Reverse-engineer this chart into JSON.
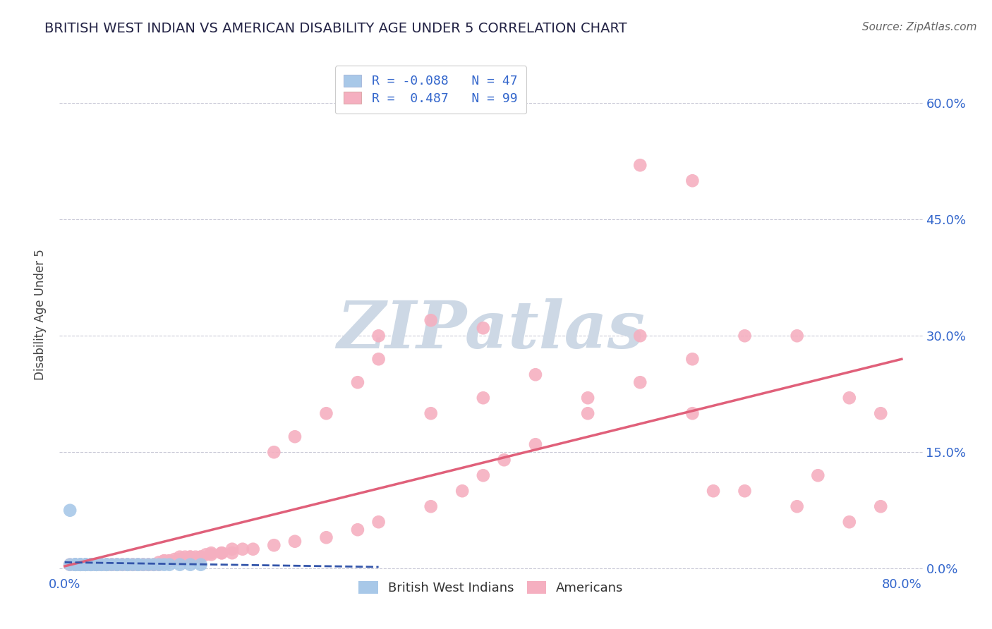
{
  "title": "BRITISH WEST INDIAN VS AMERICAN DISABILITY AGE UNDER 5 CORRELATION CHART",
  "source_text": "Source: ZipAtlas.com",
  "ylabel": "Disability Age Under 5",
  "x_ticks": [
    0.0,
    0.1,
    0.2,
    0.3,
    0.4,
    0.5,
    0.6,
    0.7,
    0.8
  ],
  "x_tick_labels": [
    "0.0%",
    "",
    "",
    "",
    "",
    "",
    "",
    "",
    "80.0%"
  ],
  "y_ticks": [
    0.0,
    0.15,
    0.3,
    0.45,
    0.6
  ],
  "y_tick_labels_right": [
    "0.0%",
    "15.0%",
    "30.0%",
    "45.0%",
    "60.0%"
  ],
  "xlim": [
    -0.005,
    0.82
  ],
  "ylim": [
    -0.005,
    0.66
  ],
  "background_color": "#ffffff",
  "grid_color": "#bbbbcc",
  "watermark_text": "ZIPatlas",
  "watermark_color": "#cdd8e5",
  "legend_r1": "-0.088",
  "legend_n1": "47",
  "legend_r2": "0.487",
  "legend_n2": "99",
  "blue_color": "#a8c8e8",
  "pink_color": "#f5afc0",
  "blue_line_color": "#3355aa",
  "pink_line_color": "#e0607a",
  "axis_label_color": "#3366cc",
  "title_color": "#222244",
  "bwi_x": [
    0.005,
    0.01,
    0.01,
    0.01,
    0.01,
    0.015,
    0.015,
    0.015,
    0.015,
    0.02,
    0.02,
    0.02,
    0.02,
    0.02,
    0.025,
    0.025,
    0.025,
    0.03,
    0.03,
    0.03,
    0.03,
    0.035,
    0.035,
    0.04,
    0.04,
    0.04,
    0.045,
    0.05,
    0.05,
    0.055,
    0.06,
    0.06,
    0.065,
    0.07,
    0.07,
    0.075,
    0.08,
    0.085,
    0.09,
    0.095,
    0.1,
    0.11,
    0.12,
    0.13,
    0.005,
    0.01,
    0.015
  ],
  "bwi_y": [
    0.075,
    0.005,
    0.005,
    0.005,
    0.005,
    0.005,
    0.005,
    0.005,
    0.005,
    0.005,
    0.005,
    0.005,
    0.005,
    0.005,
    0.005,
    0.005,
    0.005,
    0.005,
    0.005,
    0.005,
    0.005,
    0.005,
    0.005,
    0.005,
    0.005,
    0.005,
    0.005,
    0.005,
    0.005,
    0.005,
    0.005,
    0.005,
    0.005,
    0.005,
    0.005,
    0.005,
    0.005,
    0.005,
    0.005,
    0.005,
    0.005,
    0.005,
    0.005,
    0.005,
    0.005,
    0.005,
    0.005
  ],
  "amer_x": [
    0.005,
    0.01,
    0.01,
    0.015,
    0.015,
    0.02,
    0.02,
    0.02,
    0.025,
    0.025,
    0.03,
    0.03,
    0.03,
    0.035,
    0.035,
    0.04,
    0.04,
    0.04,
    0.045,
    0.045,
    0.05,
    0.05,
    0.055,
    0.055,
    0.06,
    0.06,
    0.065,
    0.065,
    0.07,
    0.07,
    0.075,
    0.075,
    0.08,
    0.08,
    0.085,
    0.085,
    0.09,
    0.09,
    0.095,
    0.095,
    0.1,
    0.1,
    0.105,
    0.11,
    0.11,
    0.115,
    0.12,
    0.12,
    0.125,
    0.13,
    0.13,
    0.135,
    0.14,
    0.14,
    0.15,
    0.15,
    0.16,
    0.16,
    0.17,
    0.18,
    0.2,
    0.22,
    0.25,
    0.28,
    0.3,
    0.35,
    0.38,
    0.4,
    0.42,
    0.45,
    0.5,
    0.55,
    0.55,
    0.6,
    0.6,
    0.62,
    0.65,
    0.7,
    0.72,
    0.75,
    0.78,
    0.5,
    0.55,
    0.6,
    0.65,
    0.7,
    0.75,
    0.78,
    0.3,
    0.35,
    0.4,
    0.45,
    0.2,
    0.22,
    0.25,
    0.28,
    0.3,
    0.35,
    0.4
  ],
  "amer_y": [
    0.005,
    0.005,
    0.005,
    0.005,
    0.005,
    0.005,
    0.005,
    0.005,
    0.005,
    0.005,
    0.005,
    0.005,
    0.005,
    0.005,
    0.005,
    0.005,
    0.005,
    0.005,
    0.005,
    0.005,
    0.005,
    0.005,
    0.005,
    0.005,
    0.005,
    0.005,
    0.005,
    0.005,
    0.005,
    0.005,
    0.005,
    0.005,
    0.005,
    0.005,
    0.005,
    0.005,
    0.005,
    0.008,
    0.01,
    0.01,
    0.01,
    0.01,
    0.012,
    0.012,
    0.015,
    0.015,
    0.015,
    0.015,
    0.015,
    0.015,
    0.015,
    0.018,
    0.018,
    0.02,
    0.02,
    0.02,
    0.02,
    0.025,
    0.025,
    0.025,
    0.03,
    0.035,
    0.04,
    0.05,
    0.06,
    0.08,
    0.1,
    0.12,
    0.14,
    0.16,
    0.2,
    0.24,
    0.3,
    0.2,
    0.27,
    0.1,
    0.1,
    0.08,
    0.12,
    0.06,
    0.08,
    0.22,
    0.52,
    0.5,
    0.3,
    0.3,
    0.22,
    0.2,
    0.3,
    0.32,
    0.31,
    0.25,
    0.15,
    0.17,
    0.2,
    0.24,
    0.27,
    0.2,
    0.22
  ],
  "amer_trend_x0": 0.0,
  "amer_trend_y0": 0.003,
  "amer_trend_x1": 0.8,
  "amer_trend_y1": 0.27,
  "bwi_trend_x0": 0.0,
  "bwi_trend_y0": 0.008,
  "bwi_trend_x1": 0.3,
  "bwi_trend_y1": 0.002
}
